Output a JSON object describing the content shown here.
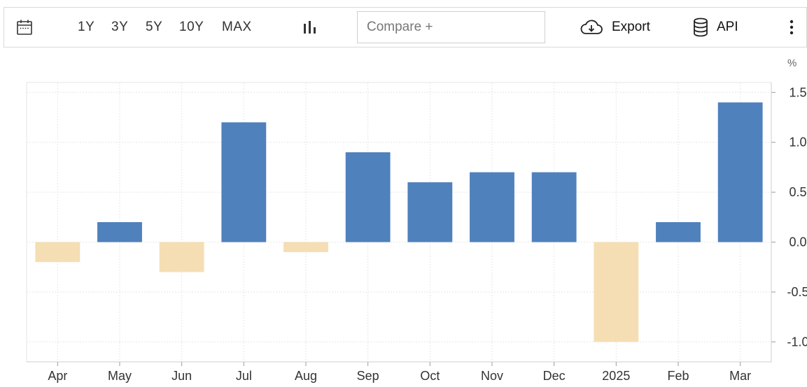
{
  "toolbar": {
    "calendar_icon": "calendar-icon",
    "ranges": [
      "1Y",
      "3Y",
      "5Y",
      "10Y",
      "MAX"
    ],
    "chart_type_icon": "bar-chart-icon",
    "compare_placeholder": "Compare +",
    "export_icon": "cloud-download-icon",
    "export_label": "Export",
    "api_icon": "database-icon",
    "api_label": "API",
    "more_icon": "more-vertical-icon"
  },
  "chart_data": {
    "type": "bar",
    "unit": "%",
    "categories": [
      "Apr",
      "May",
      "Jun",
      "Jul",
      "Aug",
      "Sep",
      "Oct",
      "Nov",
      "Dec",
      "2025",
      "Feb",
      "Mar"
    ],
    "values": [
      -0.2,
      0.2,
      -0.3,
      1.2,
      -0.1,
      0.9,
      0.6,
      0.7,
      0.7,
      -1.0,
      0.2,
      1.4
    ],
    "ylim": [
      -1.2,
      1.6
    ],
    "yticks": [
      -1.0,
      -0.5,
      0.0,
      0.5,
      1.0,
      1.5
    ],
    "ytick_labels": [
      "-1.0",
      "-0.5",
      "0.0",
      "0.5",
      "1.0",
      "1.5"
    ],
    "y_axis_position": "right",
    "grid": true,
    "colors": {
      "positive": "#4f81bd",
      "negative": "#f5deb3",
      "grid": "#e6e6e6",
      "axis": "#cccccc"
    }
  }
}
